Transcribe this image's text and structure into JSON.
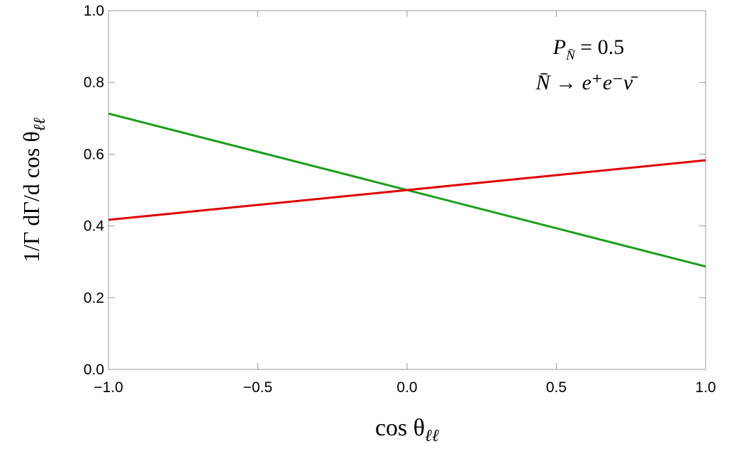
{
  "chart_data": {
    "type": "line",
    "x_label": {
      "text": "cos θ",
      "sub": "ℓℓ"
    },
    "y_label": {
      "text": "1/Γ dΓ/d cos θ",
      "sub": "ℓℓ"
    },
    "annotations": [
      {
        "text": "P",
        "sub": "N̄",
        "rest": " = 0.5"
      },
      {
        "text": "N̄ → e⁺e⁻ν̄"
      }
    ],
    "x": [
      -1,
      1
    ],
    "series": [
      {
        "color": "#1a9e1a",
        "values": [
          0.713,
          0.287
        ]
      },
      {
        "color": "#e00000",
        "values": [
          0.417,
          0.583
        ]
      }
    ],
    "xlim": [
      -1,
      1
    ],
    "ylim": [
      0,
      1
    ],
    "xticks": [
      {
        "value": -1,
        "label": "−1.0"
      },
      {
        "value": -0.5,
        "label": "−0.5"
      },
      {
        "value": 0,
        "label": "0.0"
      },
      0.5,
      {
        "value": 1,
        "label": "1.0"
      }
    ],
    "yticks": [
      {
        "value": 0,
        "label": "0.0"
      },
      0.2,
      0.4,
      0.6,
      0.8,
      {
        "value": 1,
        "label": "1.0"
      }
    ]
  }
}
